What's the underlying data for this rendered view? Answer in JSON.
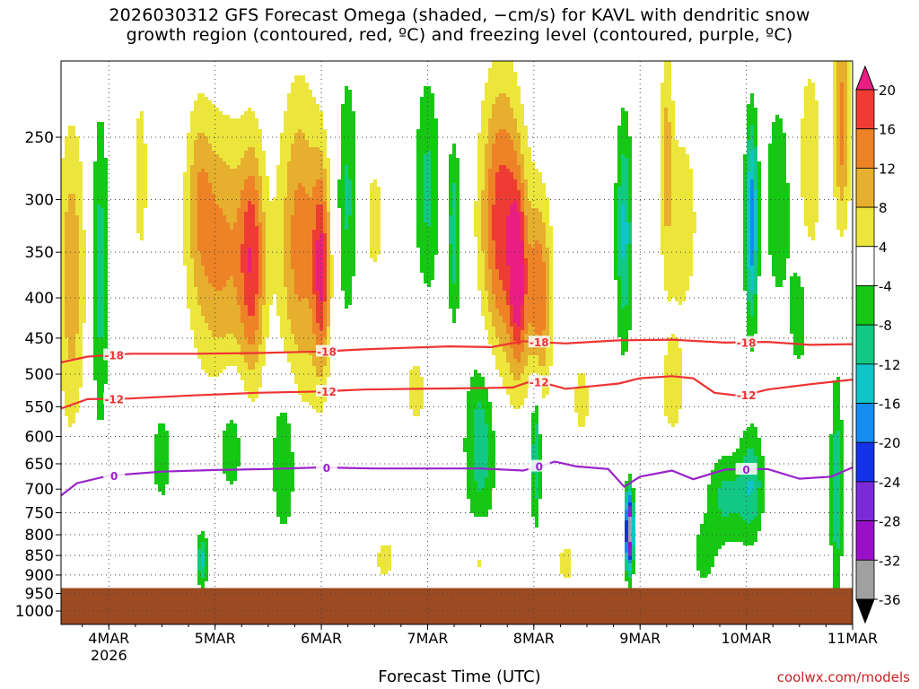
{
  "title": "2026030312 GFS Forecast Omega (shaded, −cm/s) for KAVL with dendritic snow\ngrowth region (contoured, red, ºC) and freezing level (contoured, purple, ºC)",
  "x_axis_label": "Forecast Time (UTC)",
  "credit": "coolwx.com/models",
  "colors": {
    "ground": "#9b4a22",
    "dgz_contour": "#ee3333",
    "freezing_contour": "#9922cc",
    "grid": "#444444"
  },
  "chart_data": {
    "type": "heatmap",
    "title": "2026030312 GFS Forecast Omega (shaded, −cm/s) for KAVL with dendritic snow growth region (contoured, red, ºC) and freezing level (contoured, purple, ºC)",
    "xlabel": "Forecast Time (UTC)",
    "ylabel": "",
    "x_range_days": [
      3.55,
      11.0
    ],
    "x_ticks": [
      {
        "label": "4MAR",
        "sub": "2026",
        "day": 4
      },
      {
        "label": "5MAR",
        "sub": "",
        "day": 5
      },
      {
        "label": "6MAR",
        "sub": "",
        "day": 6
      },
      {
        "label": "7MAR",
        "sub": "",
        "day": 7
      },
      {
        "label": "8MAR",
        "sub": "",
        "day": 8
      },
      {
        "label": "9MAR",
        "sub": "",
        "day": 9
      },
      {
        "label": "10MAR",
        "sub": "",
        "day": 10
      },
      {
        "label": "11MAR",
        "sub": "",
        "day": 11
      }
    ],
    "y_axis": "pressure (hPa), log scale, inverted",
    "y_range": [
      200,
      1040
    ],
    "y_ticks": [
      250,
      300,
      350,
      400,
      450,
      500,
      550,
      600,
      650,
      700,
      750,
      800,
      850,
      900,
      950,
      1000
    ],
    "surface_pressure": 935,
    "colorbar": {
      "levels": [
        -36,
        -32,
        -28,
        -24,
        -20,
        -16,
        -12,
        -8,
        -4,
        4,
        8,
        12,
        16,
        20
      ],
      "colors": [
        "#000000",
        "#a0a0a0",
        "#9a10c8",
        "#7a2ad6",
        "#1432e6",
        "#148cf0",
        "#10c4c8",
        "#12c882",
        "#16c814",
        "#ffffff",
        "#ece63c",
        "#e6af2d",
        "#ee8226",
        "#ee3c34",
        "#ea1e82"
      ],
      "tick_labels": [
        "20",
        "16",
        "12",
        "8",
        "4",
        "-4",
        "-8",
        "-12",
        "-16",
        "-20",
        "-24",
        "-28",
        "-32",
        "-36"
      ]
    },
    "contours": [
      {
        "name": "-18",
        "label": "-18",
        "color": "#ee3333",
        "points": [
          [
            3.55,
            483
          ],
          [
            3.8,
            475
          ],
          [
            4.2,
            471
          ],
          [
            4.8,
            471
          ],
          [
            5.4,
            470
          ],
          [
            6.0,
            468
          ],
          [
            6.4,
            465
          ],
          [
            6.8,
            463
          ],
          [
            7.2,
            461
          ],
          [
            7.6,
            462
          ],
          [
            7.9,
            454
          ],
          [
            8.3,
            457
          ],
          [
            8.8,
            453
          ],
          [
            9.3,
            452
          ],
          [
            9.8,
            456
          ],
          [
            10.2,
            455
          ],
          [
            10.6,
            459
          ],
          [
            11.0,
            458
          ]
        ]
      },
      {
        "name": "-12",
        "label": "-12",
        "color": "#ee3333",
        "points": [
          [
            3.55,
            553
          ],
          [
            3.8,
            538
          ],
          [
            4.2,
            537
          ],
          [
            4.8,
            532
          ],
          [
            5.4,
            528
          ],
          [
            6.0,
            526
          ],
          [
            6.4,
            523
          ],
          [
            6.9,
            522
          ],
          [
            7.4,
            521
          ],
          [
            7.8,
            520
          ],
          [
            8.0,
            509
          ],
          [
            8.3,
            522
          ],
          [
            8.8,
            514
          ],
          [
            9.0,
            506
          ],
          [
            9.3,
            503
          ],
          [
            9.5,
            506
          ],
          [
            9.7,
            528
          ],
          [
            9.95,
            533
          ],
          [
            10.2,
            523
          ],
          [
            10.6,
            515
          ],
          [
            11.0,
            508
          ]
        ]
      },
      {
        "name": "freezing-level",
        "label": "0",
        "color": "#9922cc",
        "points": [
          [
            3.55,
            713
          ],
          [
            3.7,
            688
          ],
          [
            4.0,
            673
          ],
          [
            4.5,
            665
          ],
          [
            5.0,
            662
          ],
          [
            5.5,
            660
          ],
          [
            6.0,
            657
          ],
          [
            6.5,
            659
          ],
          [
            7.0,
            659
          ],
          [
            7.5,
            659
          ],
          [
            7.9,
            663
          ],
          [
            8.2,
            646
          ],
          [
            8.4,
            655
          ],
          [
            8.7,
            660
          ],
          [
            8.85,
            695
          ],
          [
            9.0,
            675
          ],
          [
            9.3,
            663
          ],
          [
            9.5,
            680
          ],
          [
            9.8,
            661
          ],
          [
            10.2,
            660
          ],
          [
            10.5,
            679
          ],
          [
            10.8,
            675
          ],
          [
            11.0,
            657
          ]
        ]
      }
    ],
    "omega_features": [
      {
        "t": 3.65,
        "p": 375,
        "dt": 0.13,
        "dp": 1.55,
        "peak": 11
      },
      {
        "t": 3.92,
        "p": 370,
        "dt": 0.08,
        "dp": 1.6,
        "peak": -10
      },
      {
        "t": 4.3,
        "p": 280,
        "dt": 0.08,
        "dp": 1.35,
        "peak": 6
      },
      {
        "t": 4.85,
        "p": 290,
        "dt": 0.12,
        "dp": 1.3,
        "peak": 7
      },
      {
        "t": 4.88,
        "p": 860,
        "dt": 0.05,
        "dp": 1.08,
        "peak": -13
      },
      {
        "t": 5.05,
        "p": 350,
        "dt": 0.28,
        "dp": 1.45,
        "peak": 13
      },
      {
        "t": 5.35,
        "p": 360,
        "dt": 0.12,
        "dp": 1.4,
        "peak": 16
      },
      {
        "t": 5.8,
        "p": 340,
        "dt": 0.2,
        "dp": 1.55,
        "peak": 14
      },
      {
        "t": 6.0,
        "p": 370,
        "dt": 0.08,
        "dp": 1.35,
        "peak": 17
      },
      {
        "t": 6.25,
        "p": 300,
        "dt": 0.1,
        "dp": 1.45,
        "peak": -9
      },
      {
        "t": 6.5,
        "p": 320,
        "dt": 0.15,
        "dp": 1.3,
        "peak": 5
      },
      {
        "t": 5.65,
        "p": 640,
        "dt": 0.12,
        "dp": 1.25,
        "peak": -9
      },
      {
        "t": 5.15,
        "p": 610,
        "dt": 0.15,
        "dp": 1.2,
        "peak": -7
      },
      {
        "t": 4.5,
        "p": 640,
        "dt": 0.1,
        "dp": 1.15,
        "peak": -7
      },
      {
        "t": 7.0,
        "p": 290,
        "dt": 0.12,
        "dp": 1.4,
        "peak": -9
      },
      {
        "t": 7.25,
        "p": 330,
        "dt": 0.06,
        "dp": 1.3,
        "peak": -11
      },
      {
        "t": 7.7,
        "p": 320,
        "dt": 0.2,
        "dp": 1.5,
        "peak": 19
      },
      {
        "t": 7.85,
        "p": 380,
        "dt": 0.08,
        "dp": 1.3,
        "peak": 17
      },
      {
        "t": 8.05,
        "p": 400,
        "dt": 0.12,
        "dp": 1.35,
        "peak": 15
      },
      {
        "t": 7.5,
        "p": 610,
        "dt": 0.15,
        "dp": 1.3,
        "peak": -11
      },
      {
        "t": 8.02,
        "p": 620,
        "dt": 0.05,
        "dp": 1.25,
        "peak": -13
      },
      {
        "t": 8.85,
        "p": 330,
        "dt": 0.08,
        "dp": 1.4,
        "peak": -13
      },
      {
        "t": 8.9,
        "p": 790,
        "dt": 0.04,
        "dp": 1.12,
        "peak": -36
      },
      {
        "t": 9.25,
        "p": 260,
        "dt": 0.06,
        "dp": 1.4,
        "peak": 8
      },
      {
        "t": 9.4,
        "p": 320,
        "dt": 0.18,
        "dp": 1.4,
        "peak": 6
      },
      {
        "t": 9.8,
        "p": 720,
        "dt": 0.18,
        "dp": 1.15,
        "peak": -9
      },
      {
        "t": 10.05,
        "p": 320,
        "dt": 0.06,
        "dp": 1.35,
        "peak": -19
      },
      {
        "t": 10.3,
        "p": 300,
        "dt": 0.12,
        "dp": 1.35,
        "peak": -8
      },
      {
        "t": 10.05,
        "p": 690,
        "dt": 0.12,
        "dp": 1.18,
        "peak": -11
      },
      {
        "t": 10.6,
        "p": 270,
        "dt": 0.12,
        "dp": 1.4,
        "peak": 7
      },
      {
        "t": 10.9,
        "p": 240,
        "dt": 0.08,
        "dp": 1.35,
        "peak": 14
      },
      {
        "t": 10.85,
        "p": 700,
        "dt": 0.06,
        "dp": 1.4,
        "peak": -11
      },
      {
        "t": 10.5,
        "p": 420,
        "dt": 0.1,
        "dp": 1.2,
        "peak": -7
      },
      {
        "t": 6.9,
        "p": 520,
        "dt": 0.18,
        "dp": 1.2,
        "peak": 5
      },
      {
        "t": 8.45,
        "p": 540,
        "dt": 0.12,
        "dp": 1.2,
        "peak": 5
      },
      {
        "t": 9.3,
        "p": 530,
        "dt": 0.15,
        "dp": 1.2,
        "peak": 5
      },
      {
        "t": 6.6,
        "p": 860,
        "dt": 0.15,
        "dp": 1.1,
        "peak": 5
      },
      {
        "t": 7.5,
        "p": 860,
        "dt": 0.1,
        "dp": 1.1,
        "peak": 6
      },
      {
        "t": 8.3,
        "p": 870,
        "dt": 0.12,
        "dp": 1.1,
        "peak": 5
      },
      {
        "t": 9.6,
        "p": 850,
        "dt": 0.12,
        "dp": 1.1,
        "peak": -6
      }
    ]
  }
}
